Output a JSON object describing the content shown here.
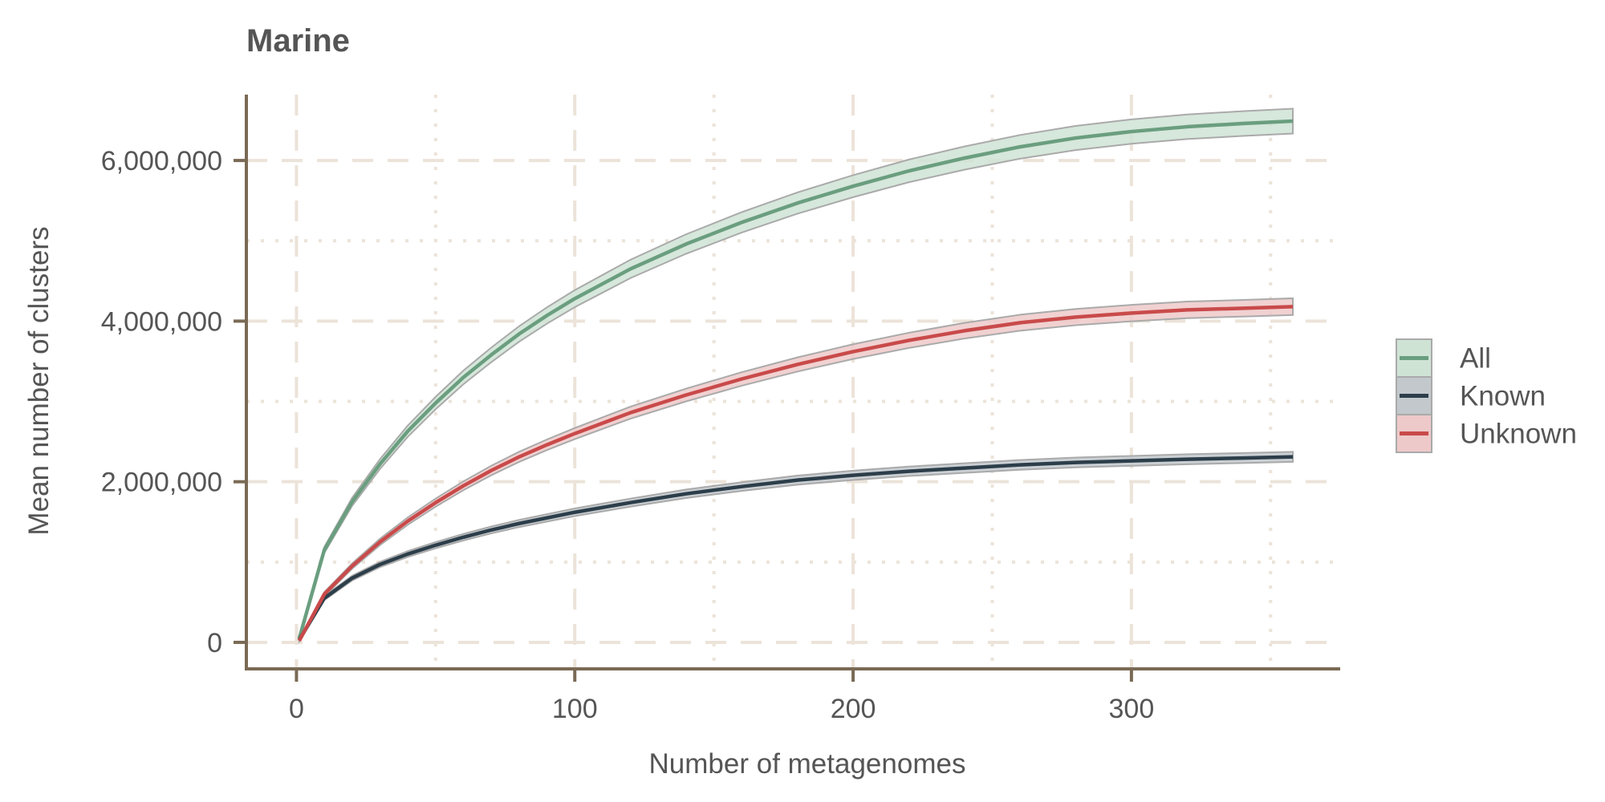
{
  "chart_data": {
    "type": "line",
    "title": "Marine",
    "xlabel": "Number of metagenomes",
    "ylabel": "Mean number of clusters",
    "xlim": [
      -18,
      375
    ],
    "ylim": [
      -330000,
      6820000
    ],
    "x_ticks": [
      0,
      100,
      200,
      300
    ],
    "x_tick_labels": [
      "0",
      "100",
      "200",
      "300"
    ],
    "y_ticks": [
      0,
      2000000,
      4000000,
      6000000
    ],
    "y_tick_labels": [
      "0",
      "2,000,000",
      "4,000,000",
      "6,000,000"
    ],
    "grid": true,
    "legend_position": "right",
    "x": [
      1,
      10,
      20,
      30,
      40,
      50,
      60,
      70,
      80,
      90,
      100,
      120,
      140,
      160,
      180,
      200,
      220,
      240,
      260,
      280,
      300,
      320,
      340,
      358
    ],
    "series": [
      {
        "name": "All",
        "color": "#6a9e7f",
        "band_color": "#cfe3d5",
        "values": [
          50000,
          1150000,
          1750000,
          2220000,
          2630000,
          2980000,
          3300000,
          3580000,
          3840000,
          4070000,
          4280000,
          4650000,
          4960000,
          5230000,
          5470000,
          5680000,
          5870000,
          6030000,
          6170000,
          6280000,
          6360000,
          6420000,
          6460000,
          6490000
        ]
      },
      {
        "name": "Known",
        "color": "#2c3e4a",
        "band_color": "#c2c8cc",
        "values": [
          30000,
          550000,
          800000,
          970000,
          1100000,
          1210000,
          1310000,
          1400000,
          1480000,
          1550000,
          1620000,
          1740000,
          1850000,
          1940000,
          2020000,
          2080000,
          2130000,
          2170000,
          2210000,
          2240000,
          2260000,
          2280000,
          2295000,
          2310000
        ]
      },
      {
        "name": "Unknown",
        "color": "#c94a4a",
        "band_color": "#eec9c9",
        "values": [
          20000,
          600000,
          950000,
          1250000,
          1510000,
          1740000,
          1950000,
          2140000,
          2310000,
          2460000,
          2600000,
          2860000,
          3080000,
          3280000,
          3460000,
          3620000,
          3760000,
          3880000,
          3980000,
          4050000,
          4100000,
          4140000,
          4160000,
          4180000
        ]
      }
    ],
    "colors": {
      "axis": "#7a6a55",
      "grid": "#ece3d9",
      "band_edge": "#aaaaaa"
    }
  }
}
